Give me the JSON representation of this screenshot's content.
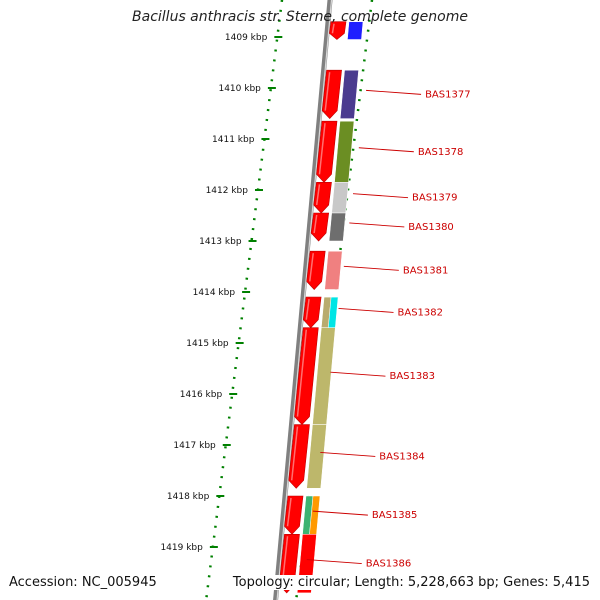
{
  "title": "Bacillus anthracis str. Sterne, complete genome",
  "accession": "Accession: NC_005945",
  "summary": "Topology: circular; Length: 5,228,663 bp; Genes: 5,415",
  "ticks": [
    {
      "kbp": 1409,
      "label": "1409 kbp"
    },
    {
      "kbp": 1410,
      "label": "1410 kbp"
    },
    {
      "kbp": 1411,
      "label": "1411 kbp"
    },
    {
      "kbp": 1412,
      "label": "1412 kbp"
    },
    {
      "kbp": 1413,
      "label": "1413 kbp"
    },
    {
      "kbp": 1414,
      "label": "1414 kbp"
    },
    {
      "kbp": 1415,
      "label": "1415 kbp"
    },
    {
      "kbp": 1416,
      "label": "1416 kbp"
    },
    {
      "kbp": 1417,
      "label": "1417 kbp"
    },
    {
      "kbp": 1418,
      "label": "1418 kbp"
    },
    {
      "kbp": 1419,
      "label": "1419 kbp"
    }
  ],
  "genes": [
    {
      "start_kbp": 1408.7,
      "end_kbp": 1409.05,
      "label": "",
      "cog_color": "#1f1fff"
    },
    {
      "start_kbp": 1409.65,
      "end_kbp": 1410.6,
      "label": "BAS1377",
      "cog_color": "#4b3b8f"
    },
    {
      "start_kbp": 1410.65,
      "end_kbp": 1411.85,
      "label": "BAS1378",
      "cog_color": "#6b8e23"
    },
    {
      "start_kbp": 1411.85,
      "end_kbp": 1412.45,
      "label": "BAS1379",
      "cog_color": "#c8c8c8"
    },
    {
      "start_kbp": 1412.45,
      "end_kbp": 1413.0,
      "label": "BAS1380",
      "cog_color": "#6e6e6e"
    },
    {
      "start_kbp": 1413.2,
      "end_kbp": 1413.95,
      "label": "BAS1381",
      "cog_color": "#f08080"
    },
    {
      "start_kbp": 1414.1,
      "end_kbp": 1414.7,
      "label": "BAS1382",
      "cog_color": "#b9ab6e",
      "extra_color": "#00e5e5"
    },
    {
      "start_kbp": 1414.7,
      "end_kbp": 1416.6,
      "label": "BAS1383",
      "cog_color": "#bdb76b"
    },
    {
      "start_kbp": 1416.6,
      "end_kbp": 1417.85,
      "label": "BAS1384",
      "cog_color": "#bdb76b"
    },
    {
      "start_kbp": 1418.0,
      "end_kbp": 1418.75,
      "label": "BAS1385",
      "cog_color": "#3cb371",
      "extra_color": "#ff9900"
    },
    {
      "start_kbp": 1418.75,
      "end_kbp": 1419.9,
      "label": "BAS1386",
      "cog_color": "#ff0000"
    }
  ],
  "colors": {
    "backbone": "#808080",
    "gene_arrow": "#ff0000",
    "tick": "#008000",
    "label": "#cc0000"
  }
}
